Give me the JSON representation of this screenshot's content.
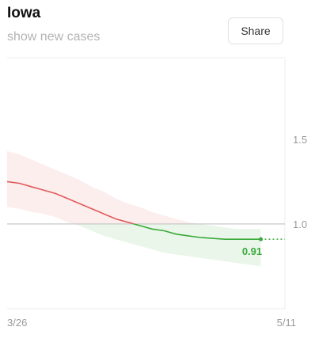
{
  "header": {
    "title": "Iowa",
    "toggle_label": "show new cases",
    "share_label": "Share"
  },
  "colors": {
    "above_one": "#e05a5a",
    "below_one": "#3aaa3a",
    "band_above": "#fdeeee",
    "band_below": "#eaf6ea",
    "reference_line": "#c8c8c8",
    "grid_line": "#eeeeee"
  },
  "chart_data": {
    "type": "line",
    "title": "",
    "xlabel": "",
    "ylabel": "",
    "x_range": [
      "3/26",
      "5/11"
    ],
    "x_tick_labels": [
      "3/26",
      "5/11"
    ],
    "y_tick_values": [
      1.0,
      1.5
    ],
    "y_tick_labels": [
      "1.0",
      "1.5"
    ],
    "ylim": [
      0.5,
      1.98
    ],
    "reference_value": 1.0,
    "grid": true,
    "series": [
      {
        "x": [
          "3/26",
          "3/28",
          "3/30",
          "4/1",
          "4/3",
          "4/5",
          "4/7",
          "4/9",
          "4/11",
          "4/13",
          "4/15",
          "4/17",
          "4/19",
          "4/21",
          "4/23",
          "4/25",
          "4/27",
          "4/29",
          "5/1",
          "5/3",
          "5/5",
          "5/7"
        ],
        "values": [
          1.25,
          1.24,
          1.22,
          1.2,
          1.18,
          1.15,
          1.12,
          1.09,
          1.06,
          1.03,
          1.01,
          0.99,
          0.97,
          0.96,
          0.94,
          0.93,
          0.92,
          0.915,
          0.91,
          0.91,
          0.91,
          0.91
        ],
        "band_upper": [
          1.43,
          1.41,
          1.38,
          1.35,
          1.32,
          1.29,
          1.26,
          1.22,
          1.19,
          1.15,
          1.12,
          1.1,
          1.07,
          1.05,
          1.03,
          1.01,
          1.0,
          0.99,
          0.98,
          0.97,
          0.97,
          0.97
        ],
        "band_lower": [
          1.1,
          1.09,
          1.07,
          1.06,
          1.04,
          1.01,
          0.99,
          0.96,
          0.93,
          0.91,
          0.89,
          0.87,
          0.85,
          0.83,
          0.82,
          0.81,
          0.8,
          0.79,
          0.78,
          0.77,
          0.76,
          0.75
        ]
      }
    ],
    "projection": {
      "from": "5/7",
      "to": "5/11",
      "value": 0.91
    },
    "last_value_label": "0.91"
  }
}
